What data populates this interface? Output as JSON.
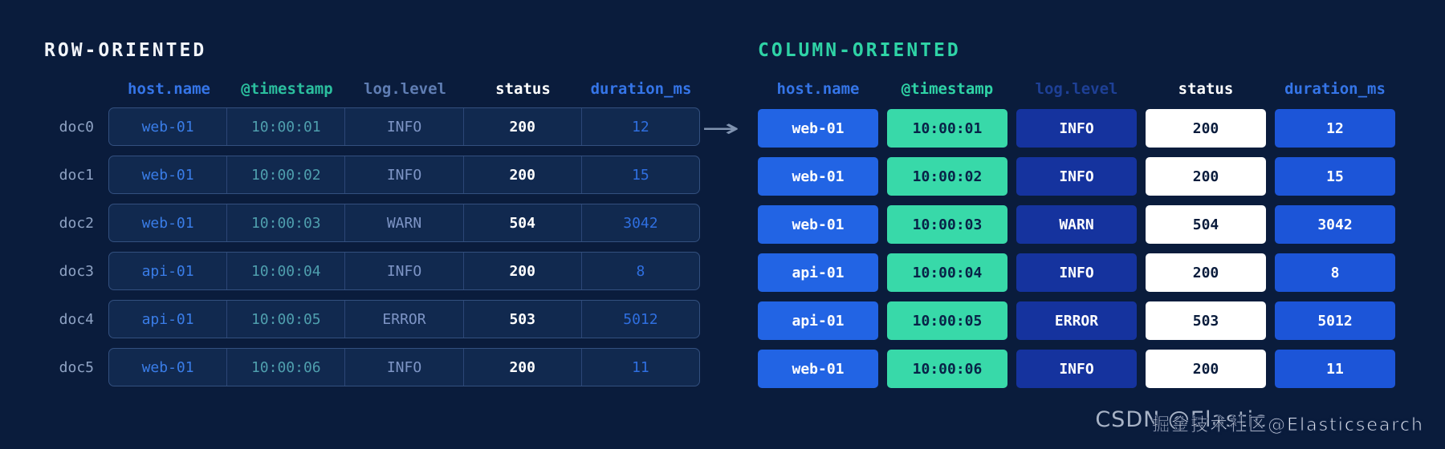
{
  "page": {
    "background": "#0a1c3c"
  },
  "arrow_icon": "→",
  "row_table": {
    "title": "ROW-ORIENTED",
    "headers": [
      "host.name",
      "@timestamp",
      "log.level",
      "status",
      "duration_ms"
    ],
    "rows": [
      {
        "doc": "doc0",
        "host": "web-01",
        "timestamp": "10:00:01",
        "level": "INFO",
        "status": "200",
        "duration": "12"
      },
      {
        "doc": "doc1",
        "host": "web-01",
        "timestamp": "10:00:02",
        "level": "INFO",
        "status": "200",
        "duration": "15"
      },
      {
        "doc": "doc2",
        "host": "web-01",
        "timestamp": "10:00:03",
        "level": "WARN",
        "status": "504",
        "duration": "3042"
      },
      {
        "doc": "doc3",
        "host": "api-01",
        "timestamp": "10:00:04",
        "level": "INFO",
        "status": "200",
        "duration": "8"
      },
      {
        "doc": "doc4",
        "host": "api-01",
        "timestamp": "10:00:05",
        "level": "ERROR",
        "status": "503",
        "duration": "5012"
      },
      {
        "doc": "doc5",
        "host": "web-01",
        "timestamp": "10:00:06",
        "level": "INFO",
        "status": "200",
        "duration": "11"
      }
    ]
  },
  "column_table": {
    "title": "COLUMN-ORIENTED",
    "columns": [
      {
        "label": "host.name",
        "values": [
          "web-01",
          "web-01",
          "web-01",
          "api-01",
          "api-01",
          "web-01"
        ]
      },
      {
        "label": "@timestamp",
        "values": [
          "10:00:01",
          "10:00:02",
          "10:00:03",
          "10:00:04",
          "10:00:05",
          "10:00:06"
        ]
      },
      {
        "label": "log.level",
        "values": [
          "INFO",
          "INFO",
          "WARN",
          "INFO",
          "ERROR",
          "INFO"
        ]
      },
      {
        "label": "status",
        "values": [
          "200",
          "200",
          "504",
          "200",
          "503",
          "200"
        ]
      },
      {
        "label": "duration_ms",
        "values": [
          "12",
          "15",
          "3042",
          "8",
          "5012",
          "11"
        ]
      }
    ]
  },
  "colors": {
    "background": "#0a1c3c",
    "row_title": "#f2f5fa",
    "column_title": "#2fd3a6",
    "header_host": "#3575e8",
    "header_timestamp": "#2bbf9e",
    "header_loglevel_left": "#5f7db3",
    "header_loglevel_right": "#1e4096",
    "header_status": "#ffffff",
    "header_duration": "#3575e8",
    "row_box_bg": "#11294f",
    "row_box_border": "#33507f",
    "cell_host_bg": "#2264e4",
    "cell_timestamp_bg": "#38d9a9",
    "cell_loglevel_bg": "#15339e",
    "cell_status_bg": "#ffffff",
    "cell_duration_bg": "#1c55d8"
  },
  "watermark": {
    "primary": "CSDN @Elastic",
    "secondary": "掘金技术社区@Elasticsearch"
  }
}
